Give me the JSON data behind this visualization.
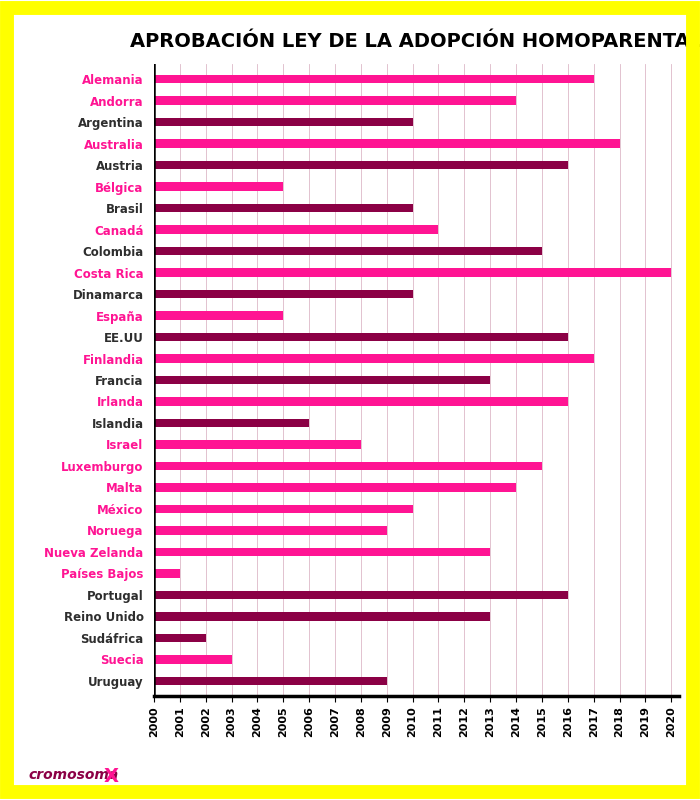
{
  "title": "APROBACIÓN LEY DE LA ADOPCIÓN HOMOPARENTAL",
  "countries": [
    "Alemania",
    "Andorra",
    "Argentina",
    "Australia",
    "Austria",
    "Bélgica",
    "Brasil",
    "Canadá",
    "Colombia",
    "Costa Rica",
    "Dinamarca",
    "España",
    "EE.UU",
    "Finlandia",
    "Francia",
    "Irlanda",
    "Islandia",
    "Israel",
    "Luxemburgo",
    "Malta",
    "México",
    "Noruega",
    "Nueva Zelanda",
    "Países Bajos",
    "Portugal",
    "Reino Unido",
    "Sudáfrica",
    "Suecia",
    "Uruguay"
  ],
  "end_years": [
    2017,
    2014,
    2010,
    2018,
    2016,
    2005,
    2010,
    2011,
    2015,
    2020,
    2010,
    2005,
    2016,
    2017,
    2013,
    2016,
    2006,
    2008,
    2015,
    2014,
    2010,
    2009,
    2013,
    2001,
    2016,
    2013,
    2002,
    2003,
    2009
  ],
  "start_year": 2000,
  "x_min": 2000,
  "x_max": 2020,
  "pink_countries": [
    "Alemania",
    "Andorra",
    "Australia",
    "Bélgica",
    "Canadá",
    "Costa Rica",
    "España",
    "Finlandia",
    "Irlanda",
    "Israel",
    "Luxemburgo",
    "Malta",
    "México",
    "Noruega",
    "Nueva Zelanda",
    "Países Bajos",
    "Suecia"
  ],
  "bar_color_pink": "#FF1493",
  "bar_color_dark": "#8B0045",
  "label_color_pink": "#FF1493",
  "label_color_dark": "#2E2E2E",
  "background": "#FFFFFF",
  "border_color": "#FFFF00",
  "border_width": 10,
  "x_ticks": [
    2000,
    2001,
    2002,
    2003,
    2004,
    2005,
    2006,
    2007,
    2008,
    2009,
    2010,
    2011,
    2012,
    2013,
    2014,
    2015,
    2016,
    2017,
    2018,
    2019,
    2020
  ],
  "title_fontsize": 14,
  "label_fontsize": 8.5,
  "tick_fontsize": 8,
  "bar_height": 0.38
}
